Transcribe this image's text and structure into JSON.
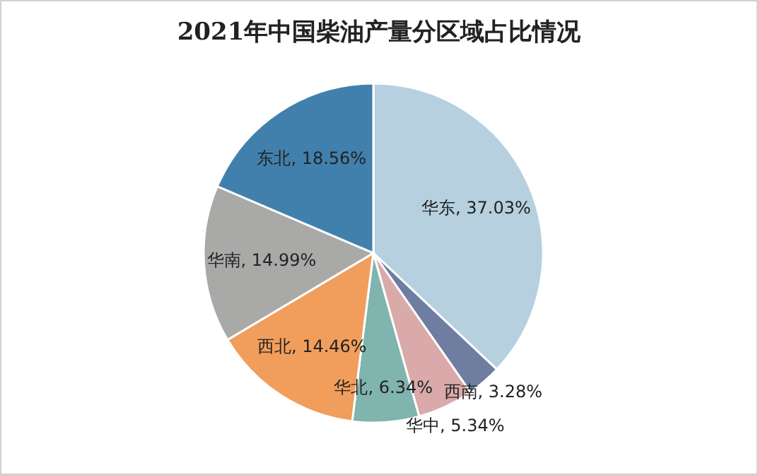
{
  "chart_data": {
    "type": "pie",
    "title": "2021年中国柴油产量分区域占比情况",
    "categories": [
      "华东",
      "西南",
      "华中",
      "华北",
      "西北",
      "华南",
      "东北"
    ],
    "values": [
      37.03,
      3.28,
      5.34,
      6.34,
      14.46,
      14.99,
      18.56
    ],
    "value_labels": [
      "37.03%",
      "3.28%",
      "5.34%",
      "6.34%",
      "14.46%",
      "14.99%",
      "18.56%"
    ],
    "colors": [
      "#b6d0e0",
      "#6e7da0",
      "#daaaaa",
      "#80b4ae",
      "#f19e5c",
      "#a9aaa8",
      "#4180ad"
    ],
    "legend": false
  }
}
